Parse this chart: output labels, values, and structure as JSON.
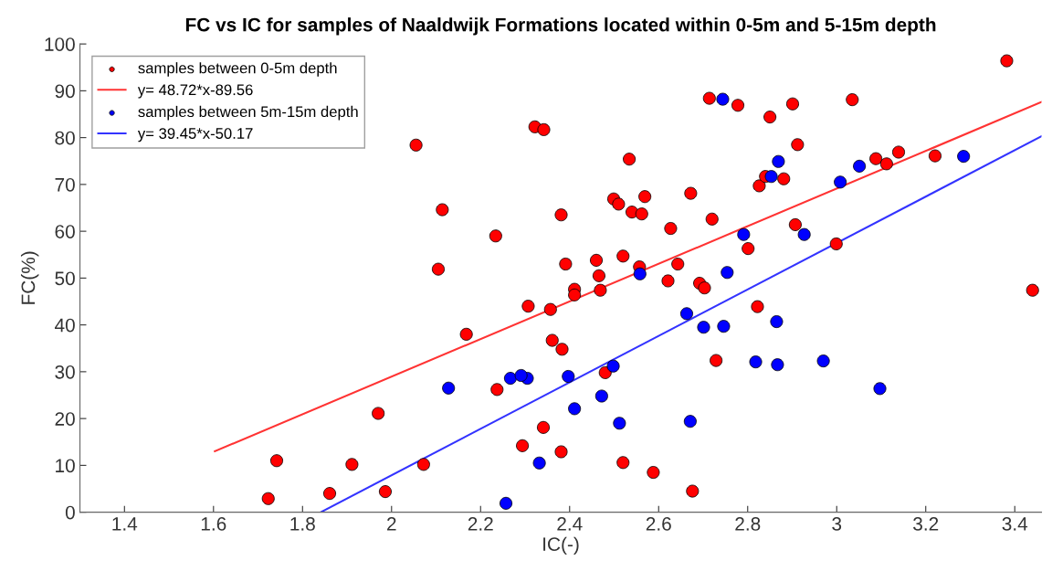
{
  "chart_data": {
    "type": "scatter",
    "title": "FC vs IC for samples of Naaldwijk Formations located within 0-5m and 5-15m depth",
    "xlabel": "IC(-)",
    "ylabel": "FC(%)",
    "xlim": [
      1.3,
      3.46
    ],
    "xticks": [
      1.4,
      1.6,
      1.8,
      2,
      2.2,
      2.4,
      2.6,
      2.8,
      3,
      3.2,
      3.4
    ],
    "ylim": [
      0,
      100
    ],
    "yticks": [
      0,
      10,
      20,
      30,
      40,
      50,
      60,
      70,
      80,
      90,
      100
    ],
    "grid": false,
    "legend": "top left",
    "series": [
      {
        "name": "samples between 0-5m depth",
        "marker": "circle",
        "color": "#ff0000",
        "x": [
          1.723,
          1.742,
          1.861,
          1.911,
          1.97,
          1.986,
          2.072,
          2.168,
          2.237,
          2.307,
          2.294,
          2.341,
          2.055,
          2.114,
          2.234,
          2.105,
          2.322,
          2.342,
          2.534,
          2.381,
          2.499,
          2.51,
          2.569,
          2.54,
          2.562,
          2.672,
          2.627,
          2.72,
          2.391,
          2.46,
          2.466,
          2.52,
          2.557,
          2.643,
          2.411,
          2.411,
          2.469,
          2.621,
          2.692,
          2.703,
          2.714,
          2.778,
          2.85,
          2.901,
          3.035,
          3.382,
          2.912,
          2.826,
          2.84,
          2.881,
          3.088,
          3.112,
          3.139,
          3.221,
          2.907,
          2.801,
          2.999,
          3.44,
          2.357,
          2.822,
          2.729,
          2.361,
          2.383,
          2.48,
          2.381,
          2.52,
          2.588,
          2.676
        ],
        "values": [
          2.9,
          11.0,
          4.0,
          10.2,
          21.1,
          4.4,
          10.2,
          38.0,
          26.2,
          44.0,
          14.2,
          18.1,
          78.4,
          64.6,
          59.0,
          51.9,
          82.3,
          81.7,
          75.4,
          63.5,
          66.9,
          65.8,
          67.4,
          64.1,
          63.7,
          68.1,
          60.6,
          62.6,
          53.0,
          53.8,
          50.5,
          54.7,
          52.4,
          53.0,
          47.6,
          46.4,
          47.4,
          49.4,
          48.9,
          47.9,
          88.4,
          86.9,
          84.4,
          87.2,
          88.1,
          96.4,
          78.5,
          69.7,
          71.7,
          71.2,
          75.5,
          74.4,
          76.9,
          76.1,
          61.4,
          56.3,
          57.3,
          47.4,
          43.3,
          43.9,
          32.4,
          36.7,
          34.8,
          29.8,
          12.9,
          10.6,
          8.5,
          4.5
        ]
      },
      {
        "name": "y= 48.72*x-89.56",
        "type": "line",
        "marker": "none",
        "color": "#ff3333",
        "x": [
          1.603,
          3.46
        ],
        "values": [
          13.0,
          87.6
        ]
      },
      {
        "name": "samples between 5m-15m depth",
        "marker": "circle",
        "color": "#0000ff",
        "x": [
          2.128,
          2.257,
          2.267,
          2.305,
          2.291,
          2.332,
          2.744,
          2.869,
          2.853,
          3.008,
          3.051,
          3.285,
          2.791,
          2.927,
          2.558,
          2.754,
          2.663,
          2.701,
          2.746,
          2.865,
          2.498,
          2.397,
          2.818,
          2.867,
          2.97,
          3.097,
          2.472,
          2.411,
          2.512,
          2.671
        ],
        "values": [
          26.5,
          1.9,
          28.6,
          28.6,
          29.2,
          10.5,
          88.2,
          74.9,
          71.7,
          70.5,
          73.9,
          76.0,
          59.3,
          59.3,
          50.9,
          51.2,
          42.4,
          39.5,
          39.7,
          40.7,
          31.2,
          29.0,
          32.1,
          31.5,
          32.3,
          26.4,
          24.8,
          22.1,
          19.0,
          19.4
        ]
      },
      {
        "name": "y= 39.45*x-50.17",
        "type": "line",
        "marker": "none",
        "color": "#3333ff",
        "x": [
          1.841,
          3.46
        ],
        "values": [
          0,
          80.3
        ]
      }
    ]
  }
}
